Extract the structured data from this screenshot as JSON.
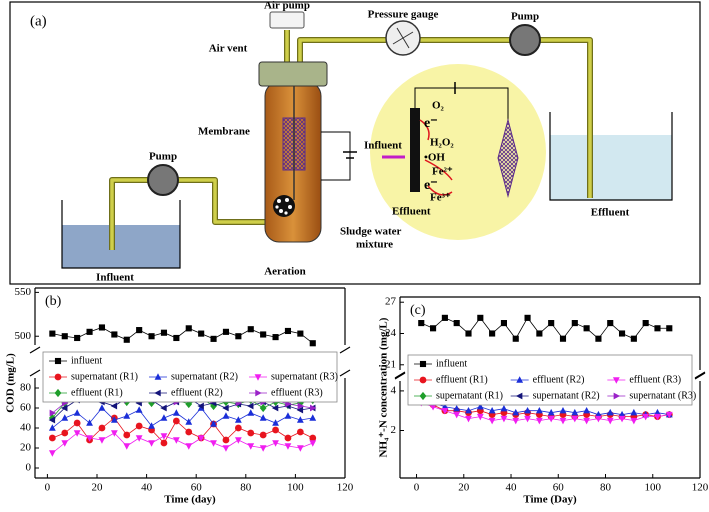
{
  "diagram": {
    "panel": "(a)",
    "air_pump": "Air pump",
    "air_vent": "Air vent",
    "pressure_gauge": "Pressure  gauge",
    "pump_top": "Pump",
    "pump_left": "Pump",
    "membrane": "Membrane",
    "influent_tank": "Influent",
    "effluent_tank": "Effluent",
    "aeration": "Aeration",
    "sludge_1": "Sludge water",
    "sludge_2": "mixture",
    "inset": {
      "o2": "O₂",
      "e1": "e⁻",
      "h2o2": "H₂O₂",
      "oh": "•OH",
      "influent": "Influent",
      "fe2": "Fe²⁺",
      "e2": "e⁻",
      "fe3": "Fe³⁺",
      "effluent": "Effluent"
    }
  },
  "chart_data": [
    {
      "type": "line",
      "title": "(b)",
      "x_label": "Time (day)",
      "y_label": "COD (mg/L)",
      "xlim": [
        -5,
        120
      ],
      "xticks": [
        0,
        20,
        40,
        60,
        80,
        100,
        120
      ],
      "ylim": [
        -10,
        90
      ],
      "yticks": [
        0,
        20,
        40,
        60,
        80
      ],
      "ylim_upper": [
        490,
        555
      ],
      "yticks_upper": [
        500,
        550
      ],
      "x": [
        2,
        7,
        12,
        17,
        22,
        27,
        32,
        37,
        42,
        47,
        52,
        57,
        62,
        67,
        72,
        77,
        82,
        87,
        92,
        97,
        102,
        107
      ],
      "series": [
        {
          "name": "influent",
          "color": "#000000",
          "marker": "square",
          "values": [
            503,
            500,
            498,
            505,
            510,
            502,
            496,
            507,
            500,
            504,
            498,
            509,
            503,
            497,
            505,
            500,
            508,
            502,
            499,
            506,
            503,
            492
          ]
        },
        {
          "name": "supernatant (R1)",
          "color": "#e8141e",
          "marker": "circle",
          "values": [
            30,
            35,
            45,
            28,
            40,
            50,
            33,
            42,
            38,
            25,
            47,
            36,
            30,
            44,
            28,
            40,
            35,
            33,
            38,
            30,
            36,
            30
          ]
        },
        {
          "name": "supernatant (R2)",
          "color": "#1a2ed8",
          "marker": "tri-up",
          "values": [
            40,
            50,
            55,
            45,
            60,
            48,
            52,
            58,
            42,
            50,
            55,
            46,
            60,
            44,
            52,
            48,
            55,
            50,
            45,
            52,
            48,
            50
          ]
        },
        {
          "name": "supernatant (R3)",
          "color": "#f01ef0",
          "marker": "tri-down",
          "values": [
            15,
            25,
            35,
            30,
            28,
            35,
            22,
            30,
            25,
            32,
            28,
            22,
            30,
            25,
            20,
            28,
            22,
            20,
            25,
            22,
            20,
            25
          ]
        },
        {
          "name": "effluent (R1)",
          "color": "#1e9e2a",
          "marker": "diamond",
          "values": [
            50,
            65,
            70,
            72,
            68,
            70,
            66,
            72,
            65,
            70,
            68,
            64,
            70,
            62,
            66,
            64,
            68,
            60,
            66,
            63,
            65,
            68
          ]
        },
        {
          "name": "effluent (R2)",
          "color": "#14147a",
          "marker": "tri-left",
          "values": [
            48,
            60,
            68,
            74,
            66,
            62,
            70,
            65,
            68,
            60,
            66,
            70,
            62,
            65,
            60,
            64,
            62,
            66,
            60,
            62,
            58,
            60
          ]
        },
        {
          "name": "effluent (R3)",
          "color": "#9a22c8",
          "marker": "tri-right",
          "values": [
            55,
            65,
            72,
            76,
            70,
            74,
            68,
            75,
            70,
            72,
            66,
            74,
            70,
            68,
            72,
            65,
            70,
            66,
            68,
            64,
            62,
            60
          ]
        }
      ]
    },
    {
      "type": "line",
      "title": "(c)",
      "x_label": "Time (Day)",
      "y_label": "NH₄⁺-N concentration (mg/L)",
      "xlim": [
        -7,
        120
      ],
      "xticks": [
        0,
        20,
        40,
        60,
        80,
        100,
        120
      ],
      "ylim": [
        -0.4,
        4.5
      ],
      "yticks": [
        2,
        4
      ],
      "ylim_upper": [
        20.5,
        27.5
      ],
      "yticks_upper": [
        21,
        24,
        27
      ],
      "x": [
        2,
        7,
        12,
        17,
        22,
        27,
        32,
        37,
        42,
        47,
        52,
        57,
        62,
        67,
        72,
        77,
        82,
        87,
        92,
        97,
        102,
        107
      ],
      "series": [
        {
          "name": "influent",
          "color": "#000000",
          "marker": "square",
          "values": [
            25,
            24.5,
            25.5,
            25,
            24,
            25.5,
            24,
            25,
            23.5,
            25.5,
            24,
            25,
            23.5,
            25,
            24.5,
            23.5,
            25,
            24,
            23.5,
            25,
            24.5,
            24.5
          ]
        },
        {
          "name": "effluent (R1)",
          "color": "#e8141e",
          "marker": "circle",
          "values": [
            3.5,
            3.3,
            3.0,
            3.0,
            2.9,
            3.0,
            2.8,
            2.9,
            2.8,
            2.9,
            2.8,
            2.7,
            2.8,
            2.7,
            2.8,
            2.7,
            2.8,
            2.7,
            2.7,
            2.8,
            2.7,
            2.8
          ]
        },
        {
          "name": "effluent (R2)",
          "color": "#1a2ed8",
          "marker": "tri-up",
          "values": [
            3.6,
            3.4,
            3.2,
            3.1,
            3.0,
            3.2,
            3.0,
            3.1,
            2.9,
            3.0,
            3.0,
            2.9,
            3.0,
            2.9,
            3.0,
            2.8,
            2.9,
            2.8,
            2.9,
            2.8,
            2.9,
            2.8
          ]
        },
        {
          "name": "effluent (R3)",
          "color": "#f01ef0",
          "marker": "tri-down",
          "values": [
            3.4,
            3.2,
            3.0,
            2.8,
            2.6,
            2.7,
            2.5,
            2.6,
            2.5,
            2.6,
            2.5,
            2.6,
            2.5,
            2.6,
            2.5,
            2.6,
            2.5,
            2.6,
            2.5,
            2.7,
            2.7,
            2.8
          ]
        },
        {
          "name": "supernatant (R1)",
          "color": "#1e9e2a",
          "marker": "diamond",
          "values": [
            3.8,
            3.7,
            3.8,
            3.9,
            3.7,
            3.8,
            3.9,
            3.8,
            3.8,
            3.9,
            3.8,
            3.8,
            3.9,
            3.8,
            3.8,
            3.9,
            3.8,
            3.9,
            3.8,
            3.9,
            3.8,
            3.9
          ]
        },
        {
          "name": "supernatant (R2)",
          "color": "#14147a",
          "marker": "tri-left",
          "values": [
            3.6,
            3.7,
            3.6,
            3.7,
            3.6,
            3.7,
            3.8,
            3.7,
            3.7,
            3.8,
            3.7,
            3.8,
            3.7,
            3.8,
            3.7,
            3.8,
            3.7,
            3.8,
            3.7,
            3.8,
            3.7,
            3.8
          ]
        },
        {
          "name": "supernatant (R3)",
          "color": "#9a22c8",
          "marker": "tri-right",
          "values": [
            3.9,
            3.7,
            3.8,
            3.6,
            3.8,
            3.7,
            3.6,
            3.8,
            3.7,
            3.8,
            3.7,
            3.7,
            3.8,
            3.7,
            3.8,
            3.7,
            3.8,
            3.8,
            3.7,
            3.8,
            3.8,
            3.8
          ]
        }
      ]
    }
  ]
}
